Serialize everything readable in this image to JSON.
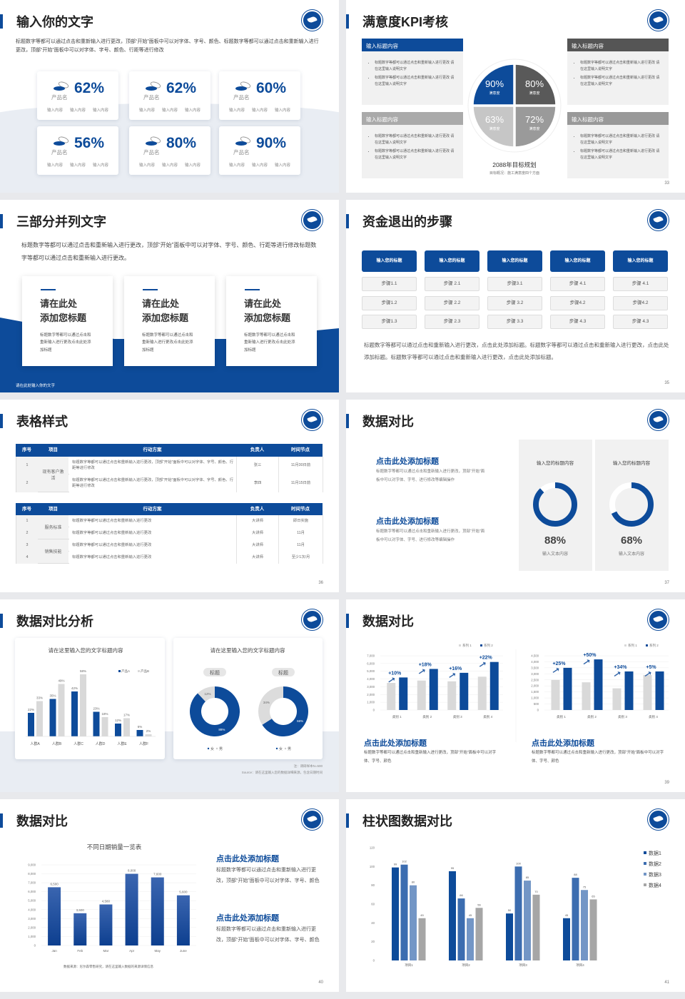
{
  "colors": {
    "primary": "#0d4b9a",
    "dark_grey": "#595959",
    "mid_grey": "#9a9a9a",
    "light_grey": "#d6d6d6",
    "panel": "#f1f1f1"
  },
  "logo_icon": "school-seal-logo",
  "slides": [
    {
      "title": "输入你的文字",
      "page": "32",
      "intro": "标题数字等都可以通过点击和重新输入进行更改，顶部“开始”面板中可以对字体、字号、颜色、标题数字等都可以通过点击和重新输入进行更改，顶部“开始”面板中可以对字体、字号、颜色、行距等进行修改",
      "cards": [
        {
          "value": "62%",
          "name": "产品名",
          "items": [
            "输入内容",
            "输入内容",
            "输入内容"
          ]
        },
        {
          "value": "62%",
          "name": "产品名",
          "items": [
            "输入内容",
            "输入内容",
            "输入内容"
          ]
        },
        {
          "value": "60%",
          "name": "产品名",
          "items": [
            "输入内容",
            "输入内容",
            "输入内容"
          ]
        },
        {
          "value": "56%",
          "name": "产品名",
          "items": [
            "输入内容",
            "输入内容",
            "输入内容"
          ]
        },
        {
          "value": "80%",
          "name": "产品名",
          "items": [
            "输入内容",
            "输入内容",
            "输入内容"
          ]
        },
        {
          "value": "90%",
          "name": "产品名",
          "items": [
            "输入内容",
            "输入内容",
            "输入内容"
          ]
        }
      ]
    },
    {
      "title": "满意度KPI考核",
      "page": "33",
      "boxes": [
        {
          "header": "输入标题内容",
          "bullets": [
            "标题数字等都可以通过点击和重新输入进行更改 请在这里输入说明文字",
            "标题数字等都可以通过点击和重新输入进行更改 请在这里输入说明文字"
          ]
        },
        {
          "header": "输入标题内容",
          "bullets": [
            "标题数字等都可以通过点击和重新输入进行更改 请在这里输入说明文字",
            "标题数字等都可以通过点击和重新输入进行更改 请在这里输入说明文字"
          ]
        },
        {
          "header": "输入标题内容",
          "bullets": [
            "标题数字等都可以通过点击和重新输入进行更改 请在这里输入说明文字",
            "标题数字等都可以通过点击和重新输入进行更改 请在这里输入说明文字"
          ]
        },
        {
          "header": "输入标题内容",
          "bullets": [
            "标题数字等都可以通过点击和重新输入进行更改 请在这里输入说明文字",
            "标题数字等都可以通过点击和重新输入进行更改 请在这里输入说明文字"
          ]
        }
      ],
      "quadrants": [
        {
          "value": "90%",
          "label": "满意度"
        },
        {
          "value": "80%",
          "label": "满意度"
        },
        {
          "value": "63%",
          "label": "满意度"
        },
        {
          "value": "72%",
          "label": "满意度"
        }
      ],
      "goal_title": "2088年目标规划",
      "goal_sub": "目标概况：施工满意度四个方面"
    },
    {
      "title": "三部分并列文字",
      "page": "34",
      "intro": "标题数字等都可以通过点击和重新输入进行更改，顶部“开始”面板中可以对字体、字号、颜色、行距等进行修改标题数字等都可以通过点击和重新输入进行更改。",
      "cards": [
        {
          "heading1": "请在此处",
          "heading2": "添加您标题",
          "body": "标题数字等都可以通过点击和重新输入进行更改点击此处添加标题"
        },
        {
          "heading1": "请在此处",
          "heading2": "添加您标题",
          "body": "标题数字等都可以通过点击和重新输入进行更改点击此处添加标题"
        },
        {
          "heading1": "请在此处",
          "heading2": "添加您标题",
          "body": "标题数字等都可以通过点击和重新输入进行更改点击此处添加标题"
        }
      ],
      "footer": "请在此处输入你的文字"
    },
    {
      "title": "资金退出的步骤",
      "page": "35",
      "columns": [
        {
          "header": "输入您的标题",
          "steps": [
            "步骤1.1",
            "步骤1.2",
            "步骤1.3"
          ]
        },
        {
          "header": "输入您的标题",
          "steps": [
            "步骤 2.1",
            "步骤 2.2",
            "步骤 2.3"
          ]
        },
        {
          "header": "输入您的标题",
          "steps": [
            "步骤3.1",
            "步骤 3.2",
            "步骤 3.3"
          ]
        },
        {
          "header": "输入您的标题",
          "steps": [
            "步骤 4.1",
            "步骤4.2",
            "步骤 4.3"
          ]
        },
        {
          "header": "输入您的标题",
          "steps": [
            "步骤 4.1",
            "步骤4.2",
            "步骤 4.3"
          ]
        }
      ],
      "body": "标题数字等都可以通过点击和重新输入进行更改，点击此处添加标题。标题数字等都可以通过点击和重新输入进行更改，点击此处添加标题。标题数字等都可以通过点击和重新输入进行更改，点击此处添加标题。"
    },
    {
      "title": "表格样式",
      "page": "36",
      "table1": {
        "headers": [
          "序号",
          "项目",
          "行动方案",
          "负责人",
          "时间节点"
        ],
        "group": "现有客户激活",
        "rows": [
          [
            "1",
            "标题数字等都可以通过点击和重新输入进行更改，顶部“开始”面板中可以对字体、字号、颜色、行距等进行修改",
            "张三",
            "11月30日前"
          ],
          [
            "2",
            "标题数字等都可以通过点击和重新输入进行更改，顶部“开始”面板中可以对字体、字号、颜色、行距等进行修改",
            "李四",
            "11月15日前"
          ]
        ]
      },
      "table2": {
        "headers": [
          "序号",
          "项目",
          "行动方案",
          "负责人",
          "时间节点"
        ],
        "groups": [
          "服务标准",
          "销售技能"
        ],
        "rows": [
          [
            "1",
            "标题数字等都可以通过点击和重新输入进行更改",
            "大讲师",
            "即日实施"
          ],
          [
            "2",
            "标题数字等都可以通过点击和重新输入进行更改",
            "大讲师",
            "11月"
          ],
          [
            "3",
            "标题数字等都可以通过点击和重新输入进行更改",
            "大讲师",
            "11月"
          ],
          [
            "4",
            "标题数字等都可以通过点击和重新输入进行更改",
            "大讲师",
            "至少1次/月"
          ]
        ]
      }
    },
    {
      "title": "数据对比",
      "page": "37",
      "texts": [
        {
          "heading": "点击此处添加标题",
          "body": "标题数字等都可以通过点击和重新输入进行更改，顶部“开始”面板中可以对字体、字号、进行修改等编辑操作"
        },
        {
          "heading": "点击此处添加标题",
          "body": "标题数字等都可以通过点击和重新输入进行更改，顶部“开始”面板中可以对字体、字号、进行修改等编辑操作"
        }
      ],
      "panels": [
        {
          "title": "输入您的标题内容",
          "value": "88%",
          "percent": 88,
          "label": "输入文本内容"
        },
        {
          "title": "输入您的标题内容",
          "value": "68%",
          "percent": 68,
          "label": "输入文本内容"
        }
      ]
    },
    {
      "title": "数据对比分析",
      "page": "38",
      "left_title": "请在这里输入您的文字标题内容",
      "right_title": "请在这里输入您的文字标题内容",
      "pill_labels": [
        "标题",
        "标题"
      ],
      "note": "注：调研样本N=500",
      "source": "Source：请在这里输入您的数据详细来源，包含日期时间"
    },
    {
      "title": "数据对比",
      "page": "39",
      "texts": [
        {
          "heading": "点击此处添加标题",
          "body": "标题数字等都可以通过点击和重新输入进行更改，顶部“开始”面板中可以对字体、字号、颜色"
        },
        {
          "heading": "点击此处添加标题",
          "body": "标题数字等都可以通过点击和重新输入进行更改，顶部“开始”面板中可以对字体、字号、颜色"
        }
      ]
    },
    {
      "title": "数据对比",
      "page": "40",
      "note": "数据来源：尼尔森零售研究，请在这里输入数据的来源详情信息",
      "texts": [
        {
          "heading": "点击此处添加标题",
          "body": "标题数字等都可以通过点击和重新输入进行更改，顶部“开始”面板中可以对字体、字号、颜色"
        },
        {
          "heading": "点击此处添加标题",
          "body": "标题数字等都可以通过点击和重新输入进行更改，顶部“开始”面板中可以对字体、字号、颜色"
        }
      ]
    },
    {
      "title": "柱状图数据对比",
      "page": "41"
    }
  ],
  "chart_data": [
    {
      "slide": "38",
      "type": "bar",
      "categories": [
        "人群A",
        "人群B",
        "人群C",
        "人群D",
        "人群E",
        "人群F"
      ],
      "series": [
        {
          "name": "产品A",
          "values": [
            22,
            35,
            42,
            23,
            12,
            6
          ],
          "labels": [
            "22%",
            "35%",
            "42%",
            "23%",
            "12%",
            "6%"
          ]
        },
        {
          "name": "产品B",
          "values": [
            33,
            49,
            58,
            18,
            17,
            2
          ],
          "labels": [
            "33%",
            "49%",
            "58%",
            "18%",
            "17%",
            "2%"
          ]
        }
      ],
      "ylim": [
        0,
        60
      ],
      "legend": "top-right",
      "grid": false
    },
    {
      "slide": "38",
      "type": "pie",
      "donut": true,
      "legend": [
        "女",
        "男"
      ],
      "values": [
        88,
        12
      ],
      "labels": [
        "88%",
        "12%"
      ]
    },
    {
      "slide": "38",
      "type": "pie",
      "donut": true,
      "legend": [
        "女",
        "男"
      ],
      "values": [
        66,
        34
      ],
      "labels": [
        "66%",
        "34%"
      ]
    },
    {
      "slide": "39",
      "type": "bar",
      "categories": [
        "类别 1",
        "类别 2",
        "类别 3",
        "类别 4"
      ],
      "series": [
        {
          "name": "系列 1",
          "values": [
            3500,
            3800,
            3700,
            4300
          ]
        },
        {
          "name": "系列 2",
          "values": [
            4200,
            5300,
            4800,
            6200
          ]
        }
      ],
      "annotations": [
        "+10%",
        "+18%",
        "+16%",
        "+22%"
      ],
      "yticks": [
        "0",
        "1,000",
        "2,000",
        "3,000",
        "4,000",
        "5,000",
        "6,000",
        "7,000"
      ],
      "ylim": [
        0,
        7000
      ],
      "grid": true,
      "legend": "top-right"
    },
    {
      "slide": "39",
      "type": "bar",
      "categories": [
        "类别 1",
        "类别 2",
        "类别 3",
        "类别 4"
      ],
      "series": [
        {
          "name": "系列 1",
          "values": [
            2500,
            2300,
            1800,
            2900
          ]
        },
        {
          "name": "系列 2",
          "values": [
            3500,
            4200,
            3200,
            3200
          ]
        }
      ],
      "annotations": [
        "+25%",
        "+50%",
        "+34%",
        "+5%"
      ],
      "yticks": [
        "0",
        "500",
        "1,000",
        "1,500",
        "2,000",
        "2,500",
        "3,000",
        "3,500",
        "4,000",
        "4,500"
      ],
      "ylim": [
        0,
        4500
      ],
      "grid": true,
      "legend": "top-right"
    },
    {
      "slide": "40",
      "type": "bar",
      "title": "不同日期销量一览表",
      "categories": [
        "Jan",
        "Feb",
        "Mar",
        "Apr",
        "May",
        "June"
      ],
      "values": [
        6500,
        3600,
        4580,
        8000,
        7600,
        5600
      ],
      "labels": [
        "6,500",
        "3,600",
        "4,580",
        "8,000",
        "7,600",
        "5,600"
      ],
      "yticks": [
        "0",
        "1,000",
        "2,000",
        "3,000",
        "4,000",
        "5,000",
        "6,000",
        "7,000",
        "8,000",
        "9,000"
      ],
      "ylim": [
        0,
        9000
      ],
      "grid": true
    },
    {
      "slide": "41",
      "type": "bar",
      "categories": [
        "项目1",
        "项目2",
        "项目3",
        "项目4"
      ],
      "series": [
        {
          "name": "数据1",
          "values": [
            99,
            95,
            50,
            45
          ],
          "color": "#0d4b9a"
        },
        {
          "name": "数据2",
          "values": [
            102,
            66,
            100,
            88
          ],
          "color": "#3c6db0"
        },
        {
          "name": "数据3",
          "values": [
            80,
            45,
            85,
            75
          ],
          "color": "#7396c6"
        },
        {
          "name": "数据4",
          "values": [
            45,
            56,
            70,
            65
          ],
          "color": "#a6a6a6"
        }
      ],
      "yticks": [
        "0",
        "20",
        "40",
        "60",
        "80",
        "100",
        "120"
      ],
      "ylim": [
        0,
        120
      ],
      "grid": false,
      "legend": "right"
    }
  ]
}
